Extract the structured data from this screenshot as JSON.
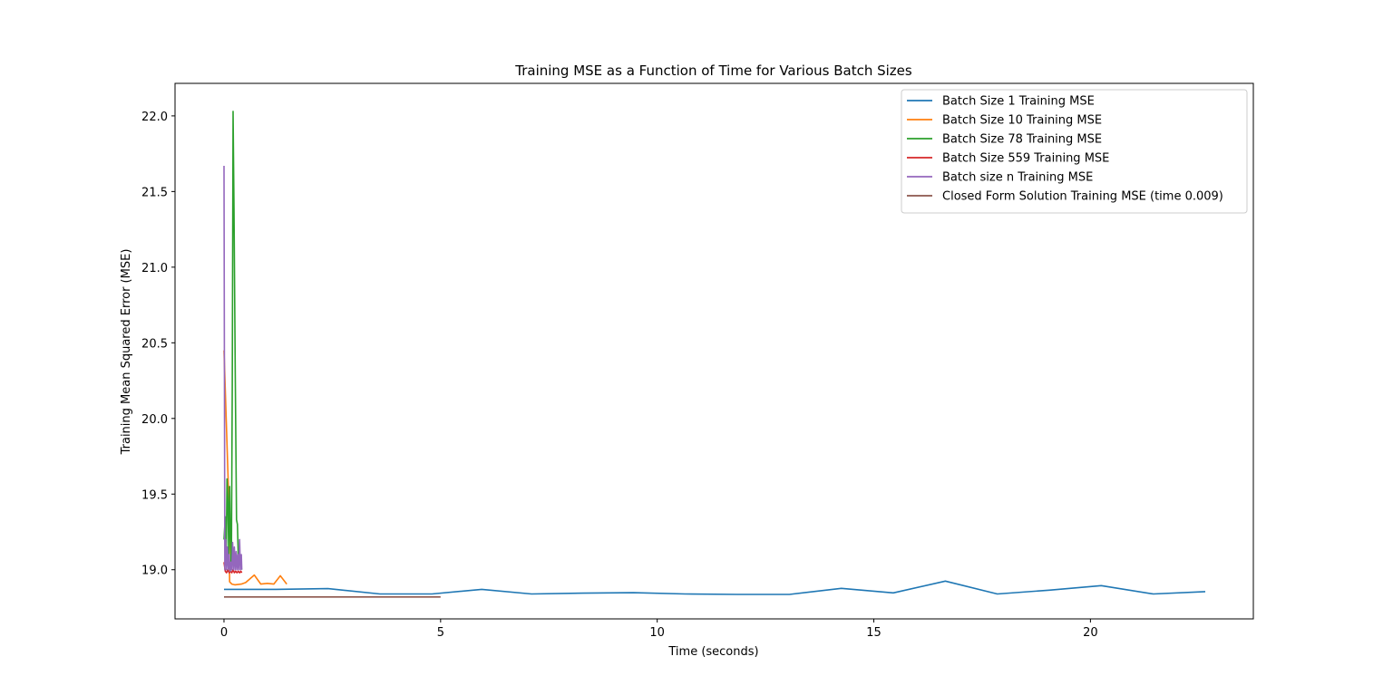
{
  "chart_data": {
    "type": "line",
    "title": "Training MSE as a Function of Time for Various Batch Sizes",
    "xlabel": "Time (seconds)",
    "ylabel": "Training Mean Squared Error (MSE)",
    "xlim": [
      -1.13,
      23.76
    ],
    "ylim": [
      18.675,
      22.215
    ],
    "xticks": [
      0,
      5,
      10,
      15,
      20
    ],
    "yticks": [
      19.0,
      19.5,
      20.0,
      20.5,
      21.0,
      21.5,
      22.0
    ],
    "xtick_labels": [
      "0",
      "5",
      "10",
      "15",
      "20"
    ],
    "ytick_labels": [
      "19.0",
      "19.5",
      "20.0",
      "20.5",
      "21.0",
      "21.5",
      "22.0"
    ],
    "grid": false,
    "legend_position": "top-right",
    "series": [
      {
        "name": "Batch Size 1 Training MSE",
        "color": "#1f77b4",
        "x": [
          0.0,
          1.2,
          2.4,
          3.6,
          4.8,
          5.95,
          7.1,
          8.3,
          9.45,
          10.65,
          11.85,
          13.05,
          14.25,
          15.45,
          16.65,
          17.85,
          19.05,
          20.25,
          21.45,
          22.65
        ],
        "y": [
          18.87,
          18.87,
          18.875,
          18.84,
          18.84,
          18.87,
          18.84,
          18.845,
          18.848,
          18.84,
          18.837,
          18.837,
          18.877,
          18.847,
          18.925,
          18.84,
          18.865,
          18.895,
          18.84,
          18.855
        ]
      },
      {
        "name": "Batch Size 10 Training MSE",
        "color": "#ff7f0e",
        "x": [
          0.0,
          0.05,
          0.1,
          0.13,
          0.18,
          0.25,
          0.4,
          0.5,
          0.7,
          0.85,
          1.0,
          1.15,
          1.3,
          1.45
        ],
        "y": [
          20.45,
          20.0,
          19.55,
          18.92,
          18.905,
          18.9,
          18.905,
          18.915,
          18.965,
          18.905,
          18.91,
          18.905,
          18.96,
          18.905
        ]
      },
      {
        "name": "Batch Size 78 Training MSE",
        "color": "#2ca02c",
        "x": [
          0.0,
          0.03,
          0.05,
          0.07,
          0.09,
          0.11,
          0.13,
          0.15,
          0.17,
          0.19,
          0.21,
          0.23,
          0.26,
          0.29,
          0.31,
          0.33,
          0.36,
          0.39,
          0.41
        ],
        "y": [
          19.2,
          19.35,
          19.05,
          19.6,
          19.45,
          19.1,
          19.55,
          19.2,
          19.0,
          20.2,
          22.03,
          21.4,
          20.3,
          19.33,
          19.3,
          19.1,
          19.05,
          19.02,
          19.0
        ]
      },
      {
        "name": "Batch Size 559 Training MSE",
        "color": "#d62728",
        "x": [
          0.0,
          0.03,
          0.06,
          0.09,
          0.12,
          0.15,
          0.18,
          0.21,
          0.24,
          0.27,
          0.3,
          0.33,
          0.36,
          0.39,
          0.41
        ],
        "y": [
          19.05,
          18.99,
          18.98,
          19.0,
          18.98,
          18.99,
          18.98,
          19.0,
          18.98,
          18.99,
          18.98,
          18.99,
          18.98,
          18.99,
          18.98
        ]
      },
      {
        "name": "Batch size n Training MSE",
        "color": "#9467bd",
        "x": [
          0.0,
          0.02,
          0.04,
          0.06,
          0.08,
          0.1,
          0.12,
          0.14,
          0.16,
          0.18,
          0.2,
          0.22,
          0.24,
          0.26,
          0.28,
          0.3,
          0.32,
          0.34,
          0.36,
          0.38,
          0.4,
          0.41
        ],
        "y": [
          21.67,
          19.0,
          19.2,
          19.0,
          19.15,
          19.0,
          19.1,
          18.99,
          19.05,
          19.0,
          19.18,
          19.0,
          19.15,
          19.0,
          19.12,
          19.0,
          19.1,
          19.0,
          19.2,
          19.0,
          19.1,
          19.0
        ]
      },
      {
        "name": "Closed Form Solution Training MSE (time 0.009)",
        "color": "#8c564b",
        "x": [
          0.0,
          5.0
        ],
        "y": [
          18.82,
          18.82
        ]
      }
    ]
  }
}
